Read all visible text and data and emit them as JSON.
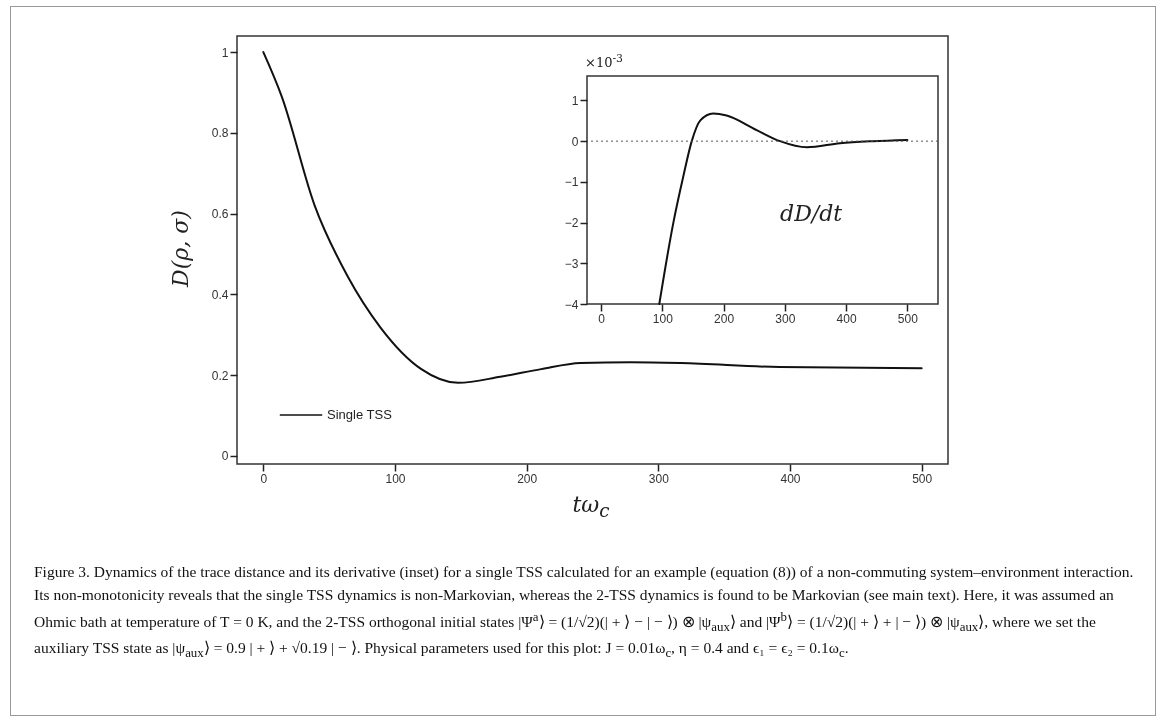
{
  "chart_data": [
    {
      "type": "line",
      "xlabel": "tω$_{c}$",
      "ylabel": "D(ρ, σ)",
      "xlim": [
        -20,
        520
      ],
      "ylim": [
        -0.02,
        1.04
      ],
      "xticks": [
        0,
        100,
        200,
        300,
        400,
        500
      ],
      "yticks": [
        0,
        0.2,
        0.4,
        0.6,
        0.8,
        1
      ],
      "legend": "bottom left",
      "series": [
        {
          "name": "Single TSS",
          "color": "#111111",
          "x": [
            0,
            14,
            39,
            64,
            89,
            120,
            148,
            180,
            211,
            241,
            279,
            317,
            392,
            500
          ],
          "values": [
            1.0,
            0.89,
            0.62,
            0.445,
            0.318,
            0.215,
            0.181,
            0.196,
            0.215,
            0.23,
            0.232,
            0.23,
            0.22,
            0.217
          ]
        }
      ],
      "annotations": [
        "Figure 3. Dynamics of the trace distance and its derivative (inset) for a single TSS calculated for an example (equation (8)) of a non-commuting system–environment interaction. Its non-monotonicity reveals that the single TSS dynamics is non-Markovian, whereas the 2-TSS dynamics is found to be Markovian (see main text). Here, it was assumed an Ohmic bath at temperature of T = 0 K, and the 2-TSS orthogonal initial states |Ψ$^{a}$⟩ = (1/√2)(| + ⟩ − | − ⟩) ⊗ |ψ$_{aux}$⟩ and |Ψ$^{b}$⟩ = (1/√2)(| + ⟩ + | − ⟩) ⊗ |ψ$_{aux}$⟩, where we set the auxiliary TSS state as |ψ$_{aux}$⟩ = 0.9 | + ⟩ + √0.19 | − ⟩. Physical parameters used for this plot: J = 0.01ω$_{c}$, η = 0.4 and ϵ₁ = ϵ₂ = 0.1ω$_{c}$."
      ]
    },
    {
      "type": "line",
      "xlim": [
        -23,
        550
      ],
      "ylim": [
        -4,
        1.6
      ],
      "xticks": [
        0,
        100,
        200,
        300,
        400,
        500
      ],
      "yticks": [
        -4,
        -3,
        -2,
        -1,
        0,
        1
      ],
      "series": [
        {
          "color": "#111111",
          "x": [
            95,
            118,
            134,
            148,
            162,
            183,
            205,
            254,
            292,
            336,
            390,
            444,
            500
          ],
          "values": [
            -4,
            -2.0,
            -0.88,
            0,
            0.51,
            0.68,
            0.63,
            0.27,
            0,
            -0.15,
            -0.05,
            0,
            0.03
          ]
        }
      ],
      "ref_lines": [
        {
          "axis": "y",
          "value": 0,
          "line_style": "dotted",
          "color": "#555555"
        }
      ],
      "annotations": [
        "×10$^{-3}$",
        "dD/dt"
      ]
    }
  ]
}
